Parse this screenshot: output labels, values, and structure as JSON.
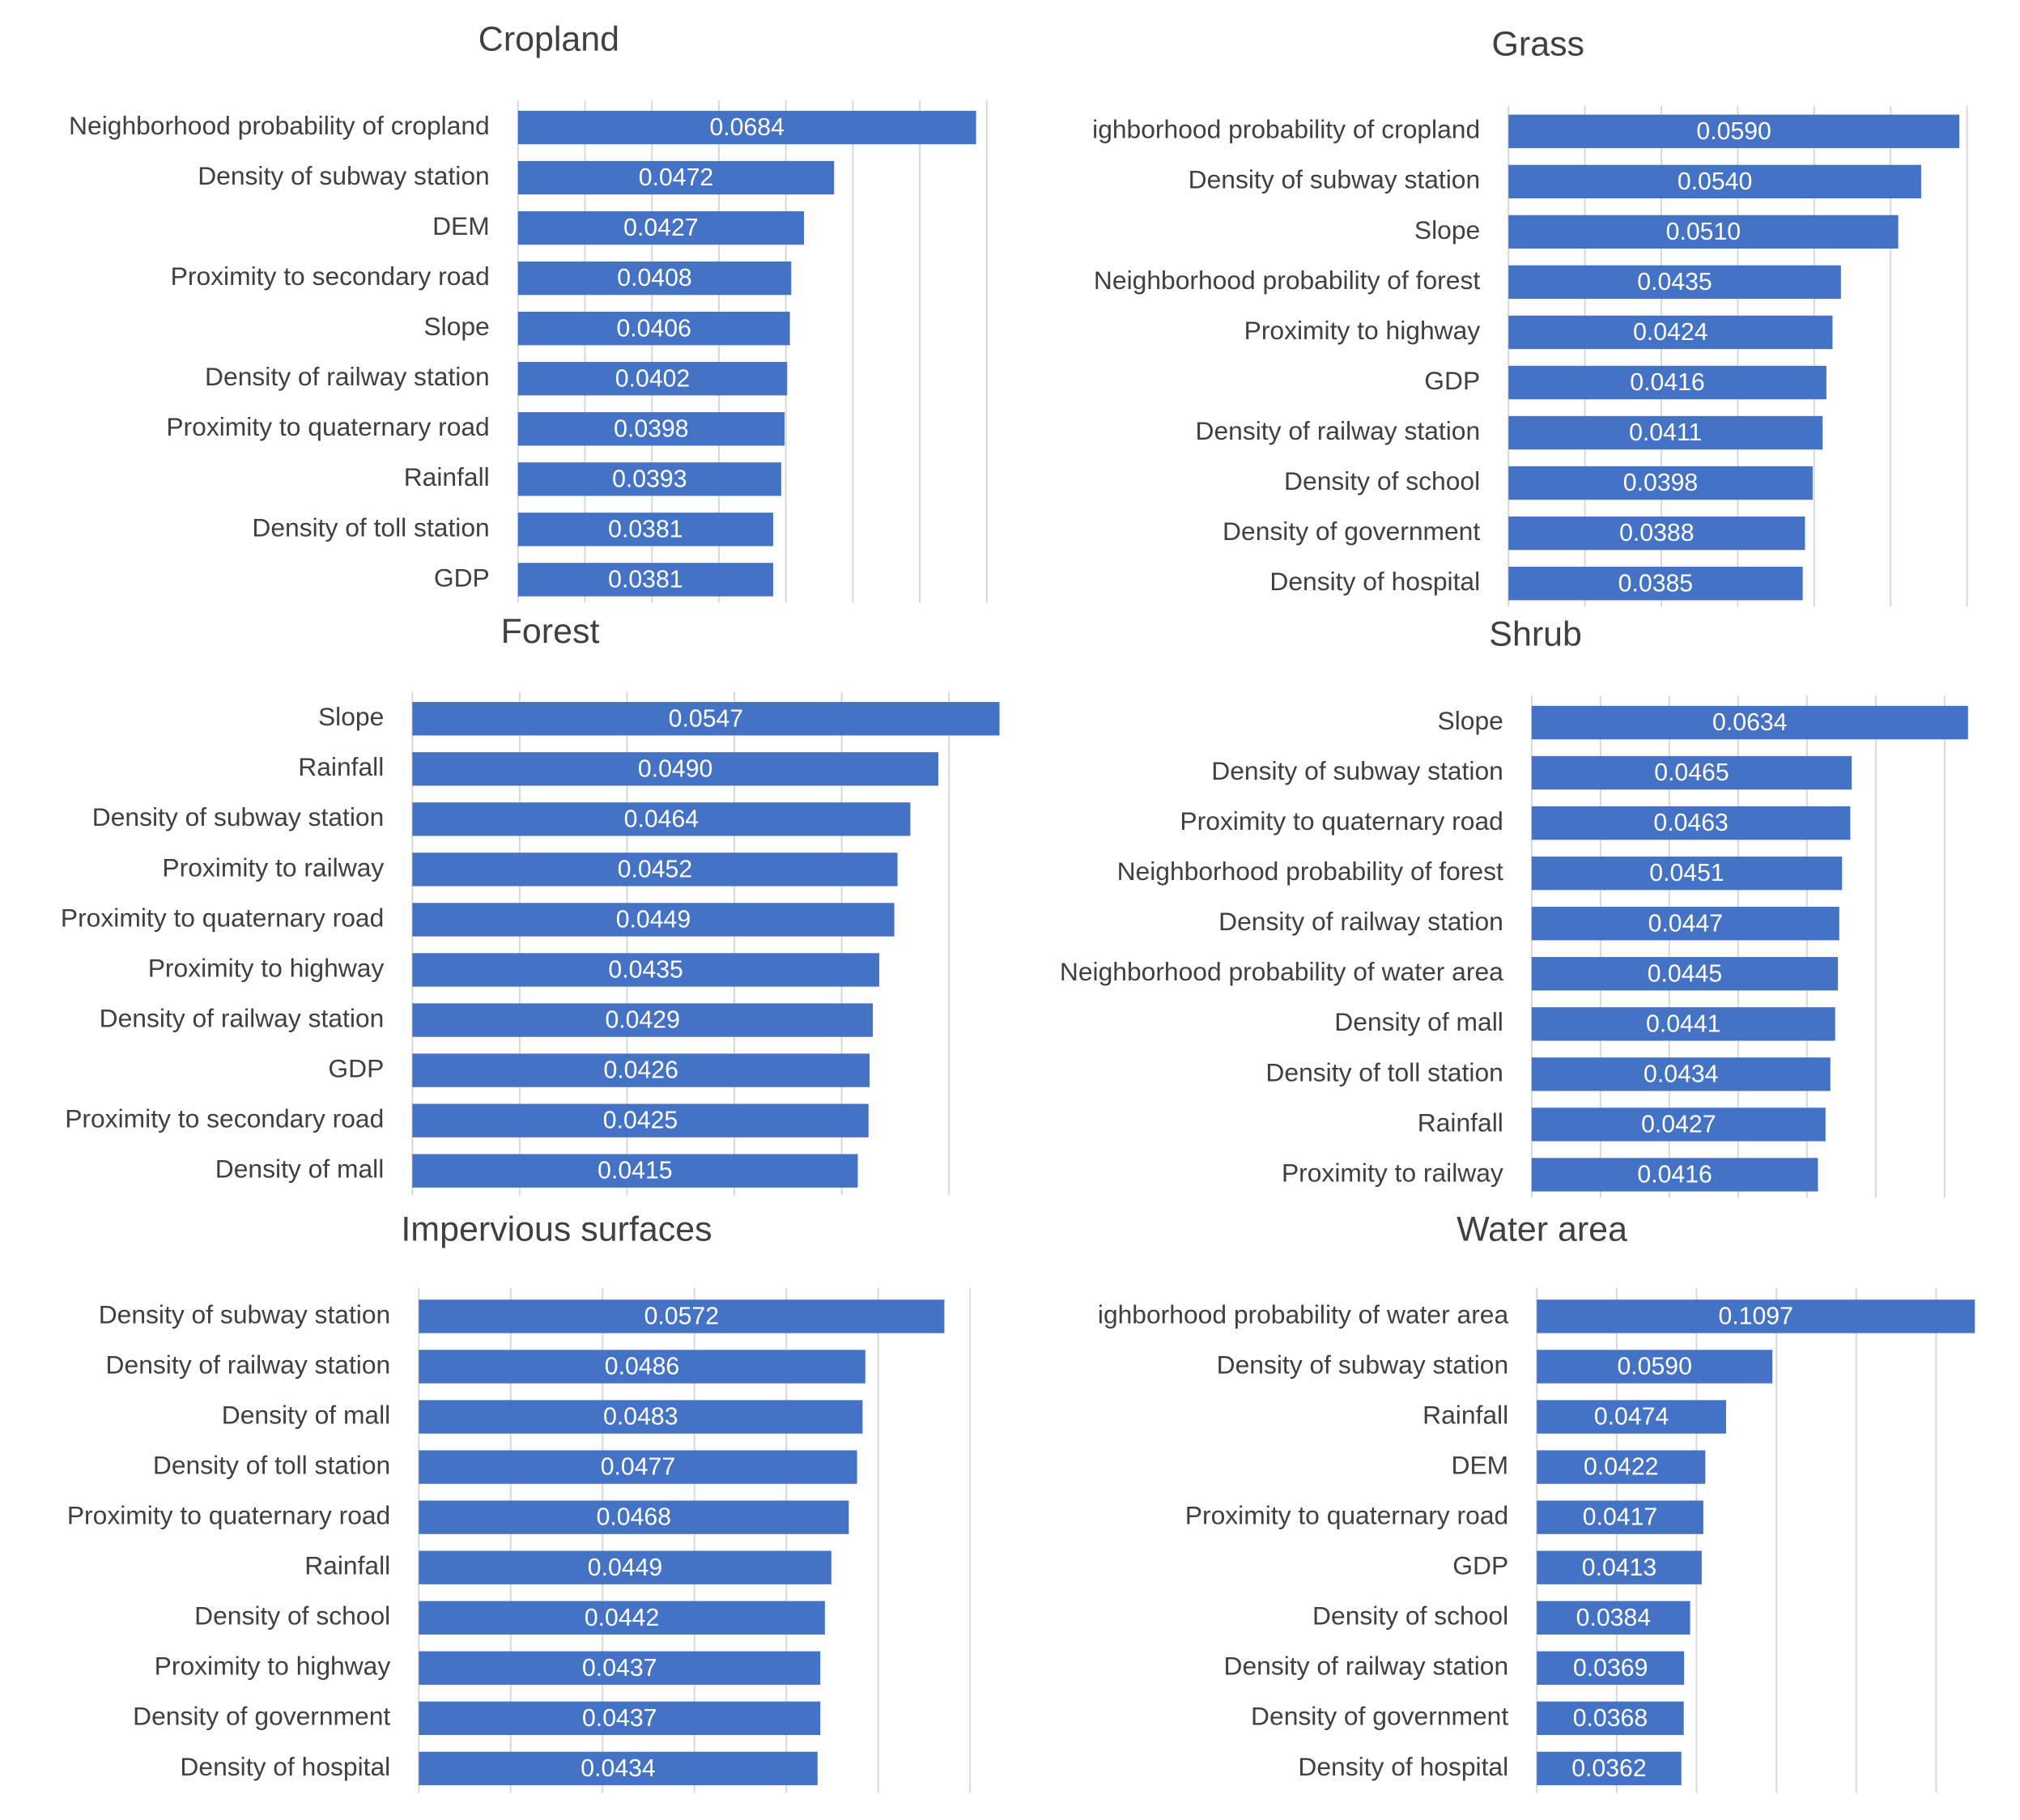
{
  "chart_data": [
    {
      "type": "bar",
      "orientation": "horizontal",
      "title": "Cropland",
      "color": "#4472c4",
      "grid": true,
      "categories": [
        "Neighborhood probability of cropland",
        "Density of subway station",
        "DEM",
        "Proximity to secondary road",
        "Slope",
        "Density of railway station",
        "Proximity to quaternary road",
        "Rainfall",
        "Density of toll station",
        "GDP"
      ],
      "values": [
        0.0684,
        0.0472,
        0.0427,
        0.0408,
        0.0406,
        0.0402,
        0.0398,
        0.0393,
        0.0381,
        0.0381
      ],
      "value_labels": [
        "0.0684",
        "0.0472",
        "0.0427",
        "0.0408",
        "0.0406",
        "0.0402",
        "0.0398",
        "0.0393",
        "0.0381",
        "0.0381"
      ],
      "xlim": [
        0,
        0.07
      ],
      "xticks": [
        0,
        0.01,
        0.02,
        0.03,
        0.04,
        0.05,
        0.06,
        0.07
      ]
    },
    {
      "type": "bar",
      "orientation": "horizontal",
      "title": "Grass",
      "color": "#4472c4",
      "grid": true,
      "categories": [
        "ighborhood probability of cropland",
        "Density of subway station",
        "Slope",
        "Neighborhood probability of forest",
        "Proximity to highway",
        "GDP",
        "Density of railway station",
        "Density of school",
        "Density of government",
        "Density of hospital"
      ],
      "values": [
        0.059,
        0.054,
        0.051,
        0.0435,
        0.0424,
        0.0416,
        0.0411,
        0.0398,
        0.0388,
        0.0385
      ],
      "value_labels": [
        "0.0590",
        "0.0540",
        "0.0510",
        "0.0435",
        "0.0424",
        "0.0416",
        "0.0411",
        "0.0398",
        "0.0388",
        "0.0385"
      ],
      "xlim": [
        0,
        0.06
      ],
      "xticks": [
        0,
        0.01,
        0.02,
        0.03,
        0.04,
        0.05,
        0.06
      ]
    },
    {
      "type": "bar",
      "orientation": "horizontal",
      "title": "Forest",
      "color": "#4472c4",
      "grid": true,
      "categories": [
        "Slope",
        "Rainfall",
        "Density of subway station",
        "Proximity to railway",
        "Proximity to quaternary road",
        "Proximity to highway",
        "Density of railway station",
        "GDP",
        "Proximity to secondary road",
        "Density of mall"
      ],
      "values": [
        0.0547,
        0.049,
        0.0464,
        0.0452,
        0.0449,
        0.0435,
        0.0429,
        0.0426,
        0.0425,
        0.0415
      ],
      "value_labels": [
        "0.0547",
        "0.0490",
        "0.0464",
        "0.0452",
        "0.0449",
        "0.0435",
        "0.0429",
        "0.0426",
        "0.0425",
        "0.0415"
      ],
      "xlim": [
        0,
        0.06
      ],
      "xticks": [
        0,
        0.01,
        0.02,
        0.03,
        0.04,
        0.05
      ]
    },
    {
      "type": "bar",
      "orientation": "horizontal",
      "title": "Shrub",
      "color": "#4472c4",
      "grid": true,
      "categories": [
        "Slope",
        "Density of subway station",
        "Proximity to quaternary road",
        "Neighborhood probability of forest",
        "Density of railway station",
        "Neighborhood probability of water area",
        "Density of mall",
        "Density of toll station",
        "Rainfall",
        "Proximity to railway"
      ],
      "values": [
        0.0634,
        0.0465,
        0.0463,
        0.0451,
        0.0447,
        0.0445,
        0.0441,
        0.0434,
        0.0427,
        0.0416
      ],
      "value_labels": [
        "0.0634",
        "0.0465",
        "0.0463",
        "0.0451",
        "0.0447",
        "0.0445",
        "0.0441",
        "0.0434",
        "0.0427",
        "0.0416"
      ],
      "xlim": [
        0,
        0.07
      ],
      "xticks": [
        0,
        0.01,
        0.02,
        0.03,
        0.04,
        0.05,
        0.06
      ]
    },
    {
      "type": "bar",
      "orientation": "horizontal",
      "title": "Impervious surfaces",
      "color": "#4472c4",
      "grid": true,
      "categories": [
        "Density of subway station",
        "Density of railway station",
        "Density of mall",
        "Density of toll station",
        "Proximity to quaternary road",
        "Rainfall",
        "Density of school",
        "Proximity to highway",
        "Density of government",
        "Density of hospital"
      ],
      "values": [
        0.0572,
        0.0486,
        0.0483,
        0.0477,
        0.0468,
        0.0449,
        0.0442,
        0.0437,
        0.0437,
        0.0434
      ],
      "value_labels": [
        "0.0572",
        "0.0486",
        "0.0483",
        "0.0477",
        "0.0468",
        "0.0449",
        "0.0442",
        "0.0437",
        "0.0437",
        "0.0434"
      ],
      "xlim": [
        0,
        0.06
      ],
      "xticks": [
        0,
        0.01,
        0.02,
        0.03,
        0.04,
        0.05,
        0.06
      ]
    },
    {
      "type": "bar",
      "orientation": "horizontal",
      "title": "Water area",
      "color": "#4472c4",
      "grid": true,
      "categories": [
        "ighborhood probability of water area",
        "Density of subway station",
        "Rainfall",
        "DEM",
        "Proximity to quaternary road",
        "GDP",
        "Density of school",
        "Density of railway station",
        "Density of government",
        "Density of hospital"
      ],
      "values": [
        0.1097,
        0.059,
        0.0474,
        0.0422,
        0.0417,
        0.0413,
        0.0384,
        0.0369,
        0.0368,
        0.0362
      ],
      "value_labels": [
        "0.1097",
        "0.0590",
        "0.0474",
        "0.0422",
        "0.0417",
        "0.0413",
        "0.0384",
        "0.0369",
        "0.0368",
        "0.0362"
      ],
      "xlim": [
        0,
        0.12
      ],
      "xticks": [
        0,
        0.02,
        0.04,
        0.06,
        0.08,
        0.1
      ]
    }
  ]
}
